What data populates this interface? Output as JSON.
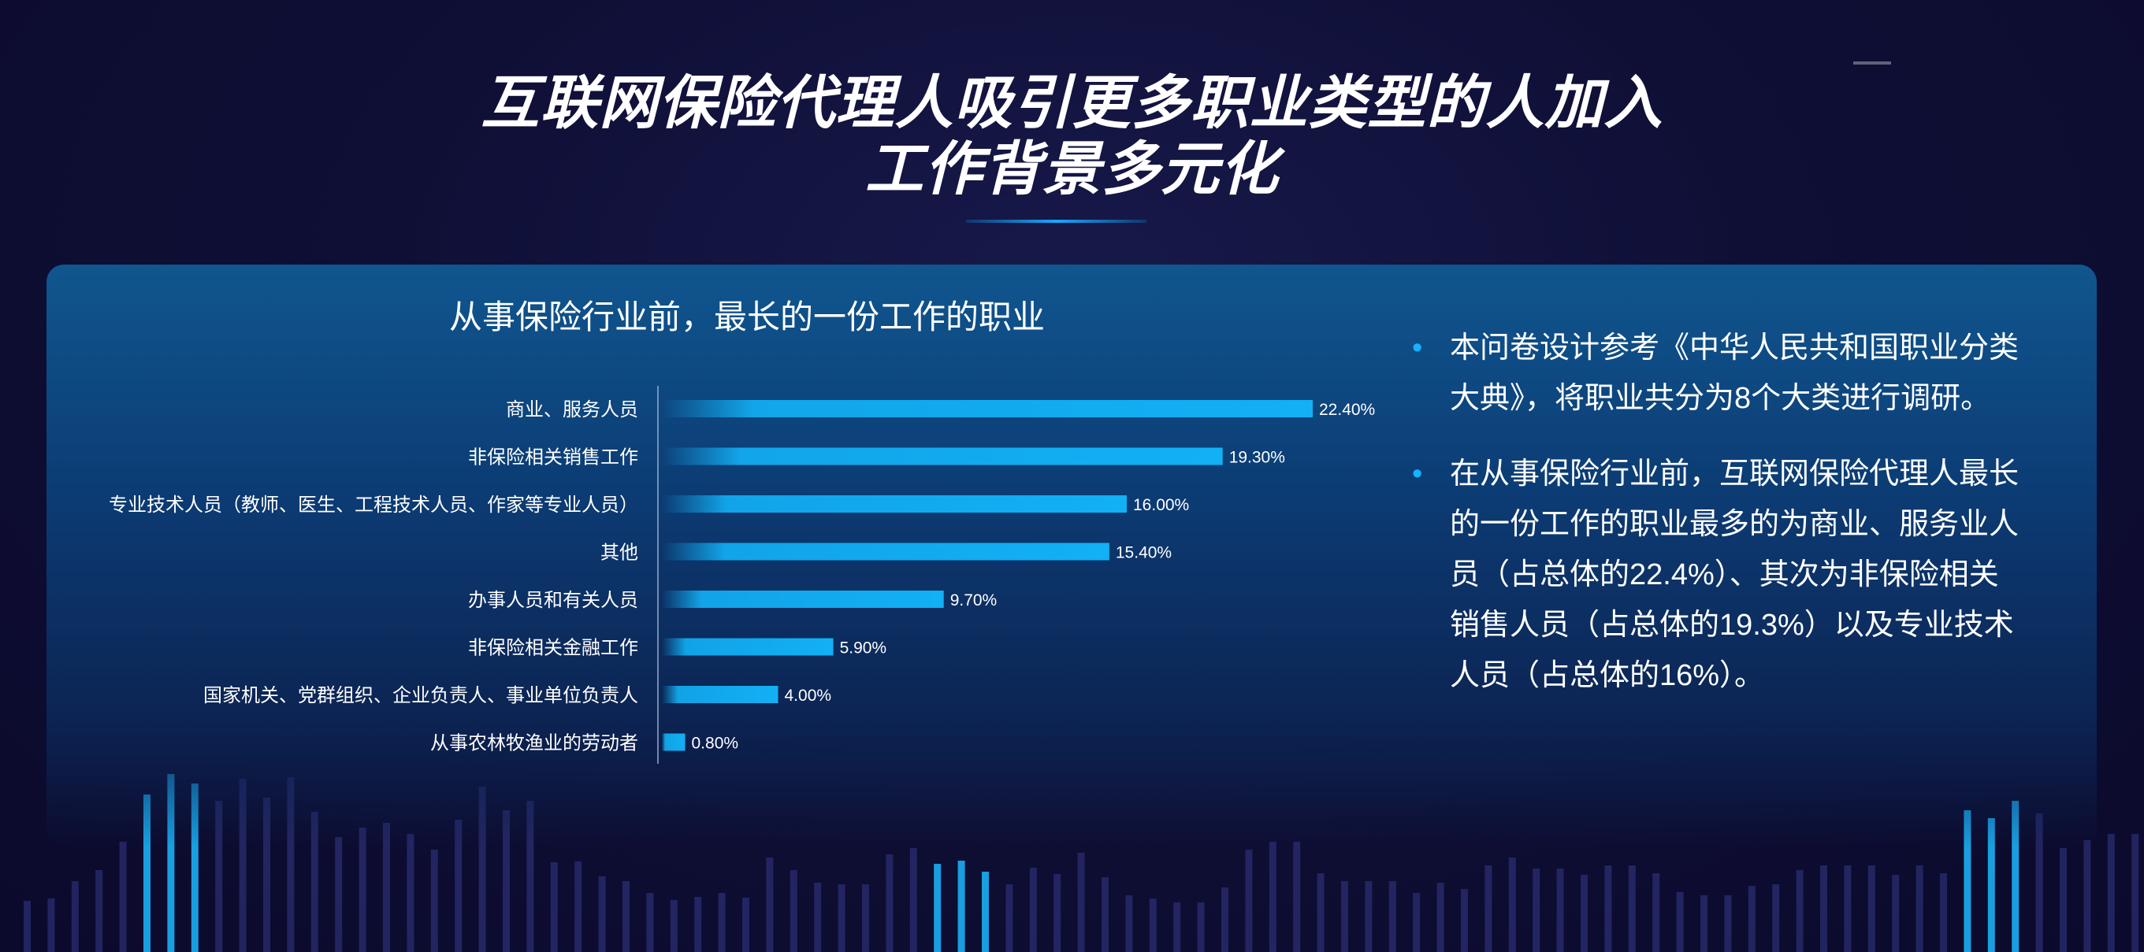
{
  "page": {
    "title_line1": "互联网保险代理人吸引更多职业类型的人加入",
    "title_line2": "工作背景多元化"
  },
  "chart_data": {
    "type": "bar",
    "orientation": "horizontal",
    "title": "从事保险行业前，最长的一份工作的职业",
    "categories": [
      "商业、服务人员",
      "非保险相关销售工作",
      "专业技术人员（教师、医生、工程技术人员、作家等专业人员）",
      "其他",
      "办事人员和有关人员",
      "非保险相关金融工作",
      "国家机关、党群组织、企业负责人、事业单位负责人",
      "从事农林牧渔业的劳动者"
    ],
    "values": [
      22.4,
      19.3,
      16.0,
      15.4,
      9.7,
      5.9,
      4.0,
      0.8
    ],
    "value_labels": [
      "22.40%",
      "19.30%",
      "16.00%",
      "15.40%",
      "9.70%",
      "5.90%",
      "4.00%",
      "0.80%"
    ],
    "unit": "%",
    "xlim": [
      0,
      22.4
    ],
    "bar_color": "#12b0f5",
    "grid": false,
    "legend": "none"
  },
  "notes": {
    "bullets": [
      "本问卷设计参考《中华人民共和国职业分类大典》，将职业共分为8个大类进行调研。",
      "在从事保险行业前，互联网保险代理人最长的一份工作的职业最多的为商业、服务业人员（占总体的22.4%）、其次为非保险相关销售人员（占总体的19.3%）以及专业技术人员（占总体的16%）。"
    ]
  },
  "colors": {
    "background": "#0f0f36",
    "panel": "#0c3b73",
    "accent": "#19b0ff"
  }
}
